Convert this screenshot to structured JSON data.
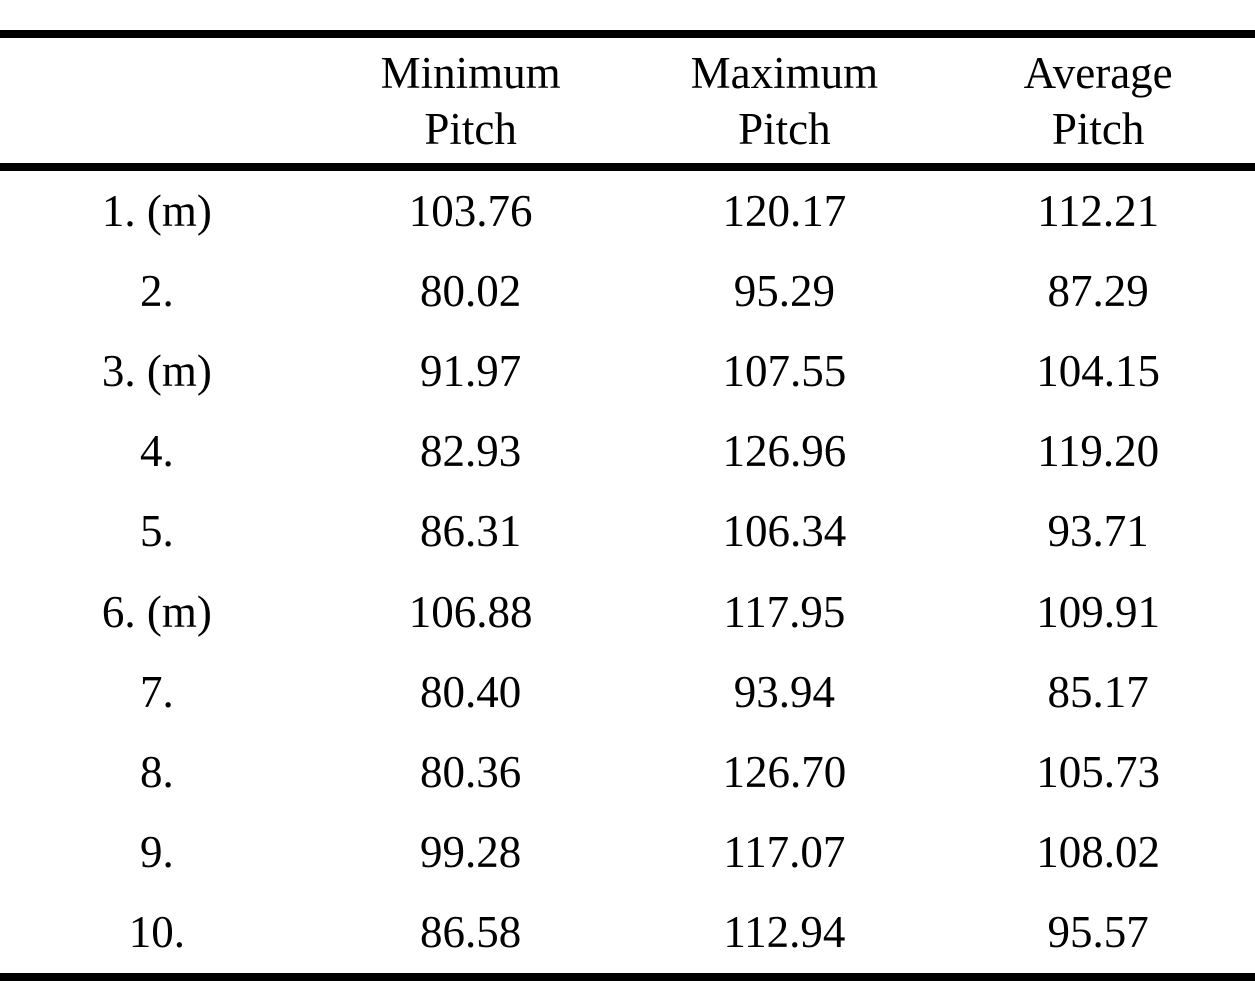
{
  "document": {
    "background_color": "#ffffff",
    "text_color": "#000000",
    "rule_color": "#000000"
  },
  "table": {
    "header": {
      "row_label_column": "",
      "minimum_pitch": {
        "line1": "Minimum",
        "line2": "Pitch"
      },
      "maximum_pitch": {
        "line1": "Maximum",
        "line2": "Pitch"
      },
      "average_pitch": {
        "line1": "Average",
        "line2": "Pitch"
      }
    },
    "rows": [
      {
        "label": "1. (m)",
        "minimum_pitch": "103.76",
        "maximum_pitch": "120.17",
        "average_pitch": "112.21"
      },
      {
        "label": "2.",
        "minimum_pitch": "80.02",
        "maximum_pitch": "95.29",
        "average_pitch": "87.29"
      },
      {
        "label": "3. (m)",
        "minimum_pitch": "91.97",
        "maximum_pitch": "107.55",
        "average_pitch": "104.15"
      },
      {
        "label": "4.",
        "minimum_pitch": "82.93",
        "maximum_pitch": "126.96",
        "average_pitch": "119.20"
      },
      {
        "label": "5.",
        "minimum_pitch": "86.31",
        "maximum_pitch": "106.34",
        "average_pitch": "93.71"
      },
      {
        "label": "6. (m)",
        "minimum_pitch": "106.88",
        "maximum_pitch": "117.95",
        "average_pitch": "109.91"
      },
      {
        "label": "7.",
        "minimum_pitch": "80.40",
        "maximum_pitch": "93.94",
        "average_pitch": "85.17"
      },
      {
        "label": "8.",
        "minimum_pitch": "80.36",
        "maximum_pitch": "126.70",
        "average_pitch": "105.73"
      },
      {
        "label": "9.",
        "minimum_pitch": "99.28",
        "maximum_pitch": "117.07",
        "average_pitch": "108.02"
      },
      {
        "label": "10.",
        "minimum_pitch": "86.58",
        "maximum_pitch": "112.94",
        "average_pitch": "95.57"
      }
    ]
  }
}
